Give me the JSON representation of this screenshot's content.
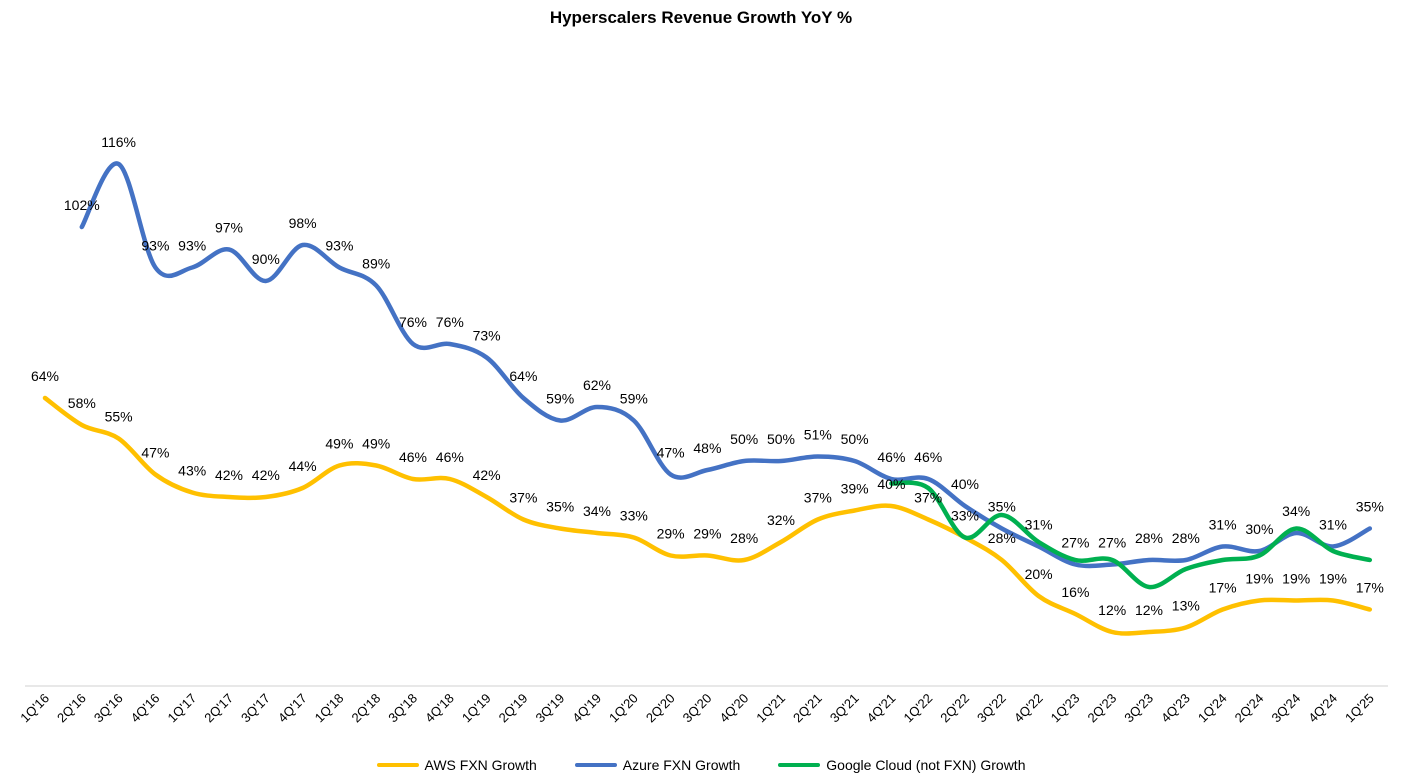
{
  "chart_data": {
    "type": "line",
    "title": "Hyperscalers Revenue Growth YoY %",
    "xlabel": "",
    "ylabel": "",
    "ylim": [
      0,
      125
    ],
    "grid": false,
    "legend_position": "bottom",
    "categories": [
      "1Q'16",
      "2Q'16",
      "3Q'16",
      "4Q'16",
      "1Q'17",
      "2Q'17",
      "3Q'17",
      "4Q'17",
      "1Q'18",
      "2Q'18",
      "3Q'18",
      "4Q'18",
      "1Q'19",
      "2Q'19",
      "3Q'19",
      "4Q'19",
      "1Q'20",
      "2Q'20",
      "3Q'20",
      "4Q'20",
      "1Q'21",
      "2Q'21",
      "3Q'21",
      "4Q'21",
      "1Q'22",
      "2Q'22",
      "3Q'22",
      "4Q'22",
      "1Q'23",
      "2Q'23",
      "3Q'23",
      "4Q'23",
      "1Q'24",
      "2Q'24",
      "3Q'24",
      "4Q'24",
      "1Q'25"
    ],
    "series": [
      {
        "name": "AWS FXN Growth",
        "color": "#FFC000",
        "values": [
          64,
          58,
          55,
          47,
          43,
          42,
          42,
          44,
          49,
          49,
          46,
          46,
          42,
          37,
          35,
          34,
          33,
          29,
          29,
          28,
          32,
          37,
          39,
          40,
          37,
          33,
          28,
          20,
          16,
          12,
          12,
          13,
          17,
          19,
          19,
          19,
          17
        ],
        "labels": [
          "64%",
          "58%",
          "55%",
          "47%",
          "43%",
          "42%",
          "42%",
          "44%",
          "49%",
          "49%",
          "46%",
          "46%",
          "42%",
          "37%",
          "35%",
          "34%",
          "33%",
          "29%",
          "29%",
          "28%",
          "32%",
          "37%",
          "39%",
          "40%",
          "37%",
          "33%",
          "28%",
          "20%",
          "16%",
          "12%",
          "12%",
          "13%",
          "17%",
          "19%",
          "19%",
          "19%",
          "17%"
        ]
      },
      {
        "name": "Azure FXN Growth",
        "color": "#4472C4",
        "values": [
          null,
          102,
          116,
          93,
          93,
          97,
          90,
          98,
          93,
          89,
          76,
          76,
          73,
          64,
          59,
          62,
          59,
          47,
          48,
          50,
          50,
          51,
          50,
          46,
          46,
          40,
          35,
          31,
          27,
          27,
          28,
          28,
          31,
          30,
          34,
          31,
          35
        ],
        "labels": [
          null,
          "102%",
          "116%",
          "93%",
          "93%",
          "97%",
          "90%",
          "98%",
          "93%",
          "89%",
          "76%",
          "76%",
          "73%",
          "64%",
          "59%",
          "62%",
          "59%",
          "47%",
          "48%",
          "50%",
          "50%",
          "51%",
          "50%",
          "46%",
          "46%",
          "40%",
          "35%",
          "31%",
          "27%",
          "27%",
          "28%",
          "28%",
          "31%",
          "30%",
          "34%",
          "31%",
          "35%"
        ]
      },
      {
        "name": "Google Cloud (not FXN) Growth",
        "color": "#00B050",
        "values": [
          null,
          null,
          null,
          null,
          null,
          null,
          null,
          null,
          null,
          null,
          null,
          null,
          null,
          null,
          null,
          null,
          null,
          null,
          null,
          null,
          null,
          null,
          null,
          45,
          44,
          33,
          38,
          32,
          28,
          28,
          22,
          26,
          28,
          29,
          35,
          30,
          28
        ],
        "labels": []
      }
    ]
  }
}
